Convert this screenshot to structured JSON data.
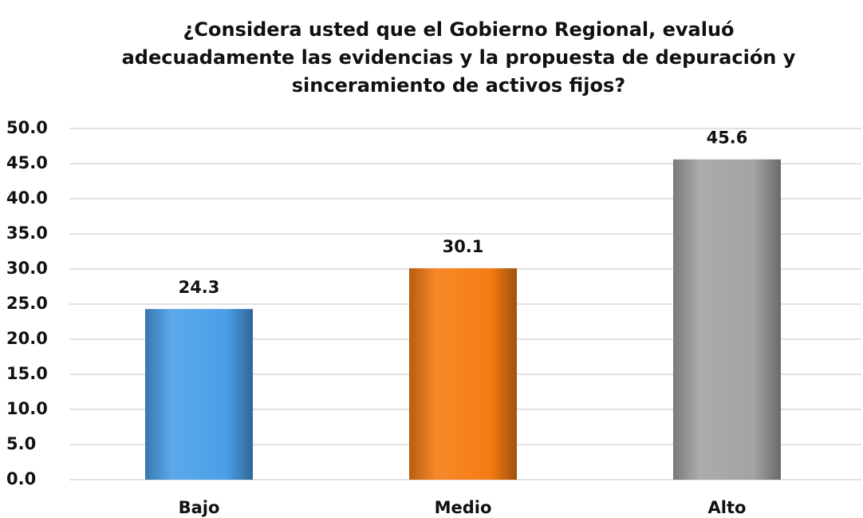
{
  "chart_data": {
    "type": "bar",
    "title": "¿Considera usted que el Gobierno Regional, evaluó adecuadamente las evidencias y la propuesta de depuración y sinceramiento de activos fijos?",
    "categories": [
      "Bajo",
      "Medio",
      "Alto"
    ],
    "values": [
      24.3,
      30.1,
      45.6
    ],
    "colors": [
      "#4a9fe8",
      "#f57c12",
      "#a3a3a3"
    ],
    "ylim": [
      0,
      50
    ],
    "yticks": [
      {
        "value": 0,
        "label": "0.0"
      },
      {
        "value": 5,
        "label": "5.0"
      },
      {
        "value": 10,
        "label": "10.0"
      },
      {
        "value": 15,
        "label": "15.0"
      },
      {
        "value": 20,
        "label": "20.0"
      },
      {
        "value": 25,
        "label": "25.0"
      },
      {
        "value": 30,
        "label": "30.0"
      },
      {
        "value": 35,
        "label": "35.0"
      },
      {
        "value": 40,
        "label": "40.0"
      },
      {
        "value": 45,
        "label": "45.0"
      },
      {
        "value": 50,
        "label": "50.0"
      }
    ],
    "grid": true
  }
}
